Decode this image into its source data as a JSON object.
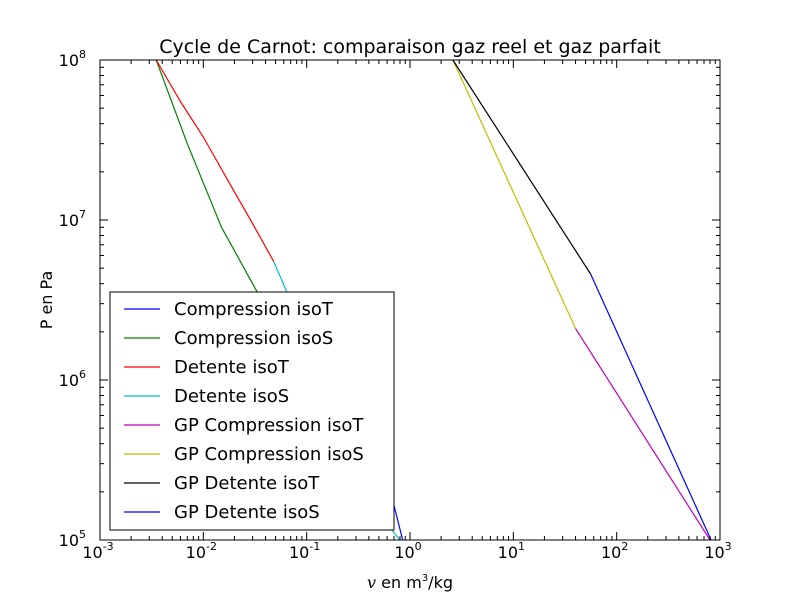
{
  "chart_data": {
    "type": "line",
    "title": "Cycle de Carnot: comparaison gaz reel et gaz parfait",
    "xlabel": {
      "var": "v",
      "text": " en m",
      "sup": "3",
      "tail": "/kg"
    },
    "ylabel": "P en Pa",
    "xscale": "log",
    "yscale": "log",
    "xlim": [
      0.001,
      1000
    ],
    "ylim": [
      100000,
      100000000
    ],
    "xticks": [
      {
        "base": "10",
        "exp": "-3",
        "value": 0.001
      },
      {
        "base": "10",
        "exp": "-2",
        "value": 0.01
      },
      {
        "base": "10",
        "exp": "-1",
        "value": 0.1
      },
      {
        "base": "10",
        "exp": "0",
        "value": 1
      },
      {
        "base": "10",
        "exp": "1",
        "value": 10
      },
      {
        "base": "10",
        "exp": "2",
        "value": 100
      },
      {
        "base": "10",
        "exp": "3",
        "value": 1000
      }
    ],
    "yticks": [
      {
        "base": "10",
        "exp": "5",
        "value": 100000
      },
      {
        "base": "10",
        "exp": "6",
        "value": 1000000
      },
      {
        "base": "10",
        "exp": "7",
        "value": 10000000
      },
      {
        "base": "10",
        "exp": "8",
        "value": 100000000
      }
    ],
    "grid": false,
    "legend_position": "lower-left",
    "series": [
      {
        "name": "Compression isoT",
        "color": "#0000ff",
        "points": [
          [
            0.36,
            900000
          ],
          [
            0.85,
            100000
          ]
        ]
      },
      {
        "name": "Compression isoS",
        "color": "#008000",
        "points": [
          [
            0.0035,
            100000000
          ],
          [
            0.007,
            30000000
          ],
          [
            0.015,
            9000000
          ],
          [
            0.03,
            4000000
          ],
          [
            0.045,
            2500000
          ]
        ]
      },
      {
        "name": "Detente isoT",
        "color": "#ff0000",
        "points": [
          [
            0.0035,
            100000000
          ],
          [
            0.006,
            55000000
          ],
          [
            0.01,
            33000000
          ],
          [
            0.02,
            15000000
          ],
          [
            0.03,
            9500000
          ],
          [
            0.048,
            5500000
          ]
        ]
      },
      {
        "name": "Detente isoS",
        "color": "#00bfbf",
        "points": [
          [
            0.048,
            5500000
          ],
          [
            0.065,
            3500000
          ],
          [
            0.085,
            2500000
          ],
          [
            0.4,
            170000
          ],
          [
            0.8,
            100000
          ]
        ]
      },
      {
        "name": "GP Compression isoT",
        "color": "#bf00bf",
        "points": [
          [
            40,
            2100000
          ],
          [
            800,
            100000
          ]
        ]
      },
      {
        "name": "GP Compression isoS",
        "color": "#bfbf00",
        "points": [
          [
            2.6,
            100000000
          ],
          [
            40,
            2100000
          ]
        ]
      },
      {
        "name": "GP Detente isoT",
        "color": "#000000",
        "points": [
          [
            2.6,
            100000000
          ],
          [
            56,
            4600000
          ]
        ]
      },
      {
        "name": "GP Detente isoS",
        "color": "#0000ff",
        "points": [
          [
            56,
            4600000
          ],
          [
            820,
            100000
          ]
        ]
      }
    ]
  }
}
